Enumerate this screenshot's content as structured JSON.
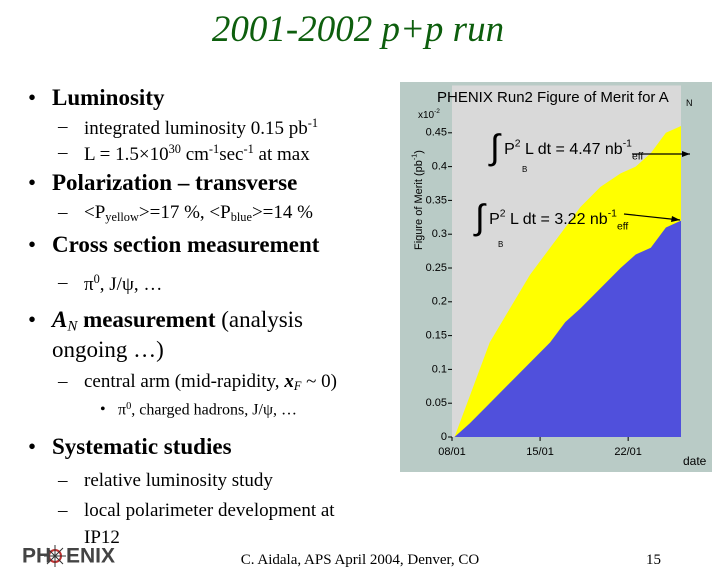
{
  "title": "2001-2002 p+p run",
  "items": [
    {
      "marker": "•",
      "level": 1,
      "lines": [
        [
          {
            "text": "Luminosity",
            "style": "bold"
          }
        ]
      ]
    },
    {
      "marker": "–",
      "level": 2,
      "lines": [
        [
          {
            "text": "integrated luminosity 0.15 pb"
          },
          {
            "text": "-1",
            "style": "sup"
          }
        ]
      ]
    },
    {
      "marker": "–",
      "level": 2,
      "lines": [
        [
          {
            "text": "L = 1.5×10"
          },
          {
            "text": "30",
            "style": "sup"
          },
          {
            "text": " cm"
          },
          {
            "text": "-1",
            "style": "sup"
          },
          {
            "text": "sec"
          },
          {
            "text": "-1",
            "style": "sup"
          },
          {
            "text": " at max"
          }
        ]
      ]
    },
    {
      "marker": "•",
      "level": 1,
      "lines": [
        [
          {
            "text": "Polarization – transverse",
            "style": "bold"
          }
        ]
      ]
    },
    {
      "marker": "–",
      "level": 2,
      "lines": [
        [
          {
            "text": "<P"
          },
          {
            "text": "yellow",
            "style": "sub"
          },
          {
            "text": ">=17 %, <P"
          },
          {
            "text": "blue",
            "style": "sub"
          },
          {
            "text": ">=14 %"
          }
        ]
      ]
    },
    {
      "marker": "•",
      "level": 1,
      "lines": [
        [
          {
            "text": "Cross section measurement",
            "style": "bold"
          }
        ]
      ]
    },
    {
      "marker": "–",
      "level": 2,
      "lines": [
        [
          {
            "text": " π"
          },
          {
            "text": "0",
            "style": "sup"
          },
          {
            "text": ", J/ψ, …"
          }
        ]
      ]
    },
    {
      "marker": "•",
      "level": 1,
      "lines": [
        [
          {
            "text": "A",
            "style": "bold italic"
          },
          {
            "text": "N",
            "style": "italic sub"
          },
          {
            "text": " measurement",
            "style": "bold"
          },
          {
            "text": " (analysis"
          }
        ],
        [
          {
            "text": "ongoing …)"
          }
        ]
      ]
    },
    {
      "marker": "–",
      "level": 2,
      "lines": [
        [
          {
            "text": "central arm (mid-rapidity, "
          },
          {
            "text": "x",
            "style": "bold italic"
          },
          {
            "text": "F",
            "style": "italic sub"
          },
          {
            "text": " ~ 0)"
          }
        ]
      ]
    },
    {
      "marker": "•",
      "level": 3,
      "lines": [
        [
          {
            "text": "π"
          },
          {
            "text": "0",
            "style": "sup"
          },
          {
            "text": ", charged hadrons, J/ψ, …"
          }
        ]
      ]
    },
    {
      "marker": "•",
      "level": 1,
      "lines": [
        [
          {
            "text": "Systematic studies",
            "style": "bold"
          }
        ]
      ]
    },
    {
      "marker": "–",
      "level": 2,
      "lines": [
        [
          {
            "text": "relative luminosity study"
          }
        ]
      ]
    },
    {
      "marker": "–",
      "level": 2,
      "lines": [
        [
          {
            "text": "local polarimeter development at"
          }
        ],
        [
          {
            "text": "IP12"
          }
        ]
      ]
    }
  ],
  "footer": {
    "text": "C. Aidala, APS April 2004, Denver, CO",
    "page": "15",
    "logo": [
      "PH",
      "ENIX"
    ]
  },
  "chart_data": {
    "type": "area",
    "title": "PHENIX Run2 Figure of Merit for A",
    "title_sub": "N",
    "ylabel": [
      {
        "text": "Figure of Merit (pb"
      },
      {
        "text": "-1",
        "style": "sup"
      },
      {
        "text": ")"
      }
    ],
    "multiplier": [
      {
        "text": "x10"
      },
      {
        "text": "-2",
        "style": "sup"
      }
    ],
    "xlabel": "date",
    "x": [
      8.2,
      9.4,
      11.0,
      12.6,
      14.2,
      15.8,
      17.0,
      18.2,
      19.8,
      21.4,
      22.6,
      23.8,
      25.0,
      26.2
    ],
    "series": [
      {
        "color": "#ffff00",
        "values": [
          0.0,
          0.06,
          0.14,
          0.19,
          0.24,
          0.28,
          0.31,
          0.34,
          0.37,
          0.39,
          0.4,
          0.42,
          0.45,
          0.46
        ]
      },
      {
        "color": "#5050dc",
        "values": [
          0.0,
          0.02,
          0.05,
          0.08,
          0.11,
          0.14,
          0.17,
          0.19,
          0.22,
          0.25,
          0.27,
          0.28,
          0.31,
          0.32
        ]
      }
    ],
    "xlim": [
      8,
      26.2
    ],
    "ylim": [
      0,
      0.52
    ],
    "xticks": [
      {
        "value": 8,
        "label": "08/01"
      },
      {
        "value": 15,
        "label": "15/01"
      },
      {
        "value": 22,
        "label": "22/01"
      }
    ],
    "yticks": [
      0,
      0.05,
      0.1,
      0.15,
      0.2,
      0.25,
      0.3,
      0.35,
      0.4,
      0.45
    ],
    "background": "#d9d9d9",
    "annotations": [
      [
        {
          "text": "∫",
          "style": "big"
        },
        {
          "text": " P"
        },
        {
          "text": "2",
          "style": "sup"
        },
        {
          "text": " L dt = 4.47 nb"
        },
        {
          "text": "-1",
          "style": "sup"
        },
        {
          "text": "eff",
          "style": "sub"
        }
      ],
      [
        {
          "text": "∫",
          "style": "big"
        },
        {
          "text": " P"
        },
        {
          "text": "2",
          "style": "sup"
        },
        {
          "text": " L dt = 3.22 nb"
        },
        {
          "text": "-1",
          "style": "sup"
        },
        {
          "text": "eff",
          "style": "sub"
        }
      ]
    ],
    "annotation_subs": [
      "B",
      "B"
    ]
  }
}
